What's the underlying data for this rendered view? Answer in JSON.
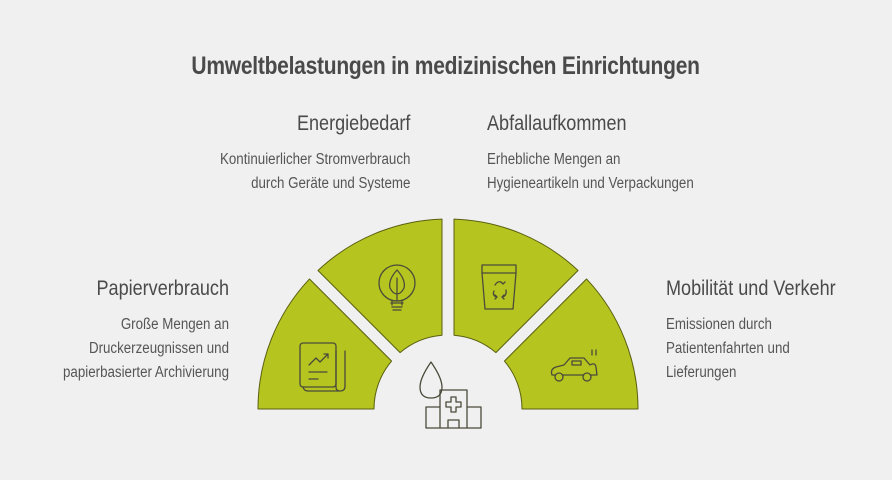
{
  "title": "Umweltbelastungen in medizinischen Einrichtungen",
  "colors": {
    "segment_fill": "#b5c41f",
    "segment_stroke": "#5a6010",
    "background": "#f0f0f0",
    "text": "#4a4a4a"
  },
  "center_icons": [
    "water-drop-icon",
    "hospital-icon"
  ],
  "items": [
    {
      "heading": "Papierverbrauch",
      "lines": [
        "Große Mengen an",
        "Druckerzeugnissen und",
        "papierbasierter Archivierung"
      ],
      "icon": "report-chart-icon"
    },
    {
      "heading": "Energiebedarf",
      "lines": [
        "Kontinuierlicher Stromverbrauch",
        "durch Geräte und Systeme"
      ],
      "icon": "eco-lightbulb-icon"
    },
    {
      "heading": "Abfallaufkommen",
      "lines": [
        "Erhebliche Mengen an",
        "Hygieneartikeln und Verpackungen"
      ],
      "icon": "recycle-bin-icon"
    },
    {
      "heading": "Mobilität und Verkehr",
      "lines": [
        "Emissionen durch",
        "Patientenfahrten und",
        "Lieferungen"
      ],
      "icon": "car-emissions-icon"
    }
  ]
}
